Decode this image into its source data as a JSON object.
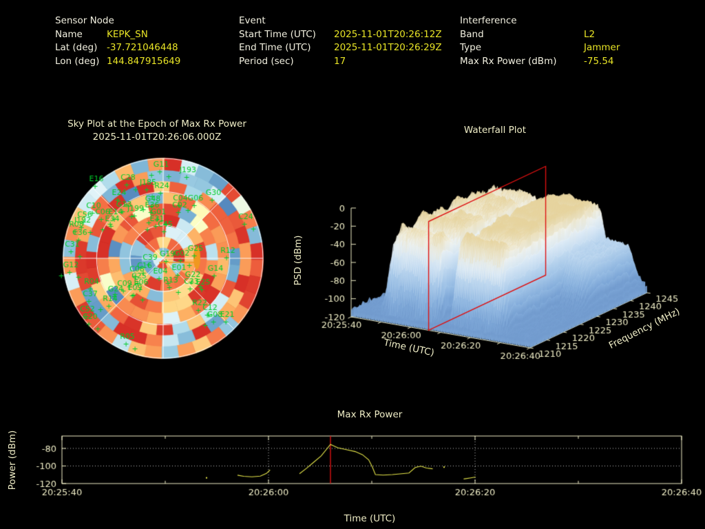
{
  "colors": {
    "background": "#000000",
    "label_text": "#f2f0e0",
    "value_text": "#e8e426",
    "chart_text": "#efedc6",
    "trace_yellow": "#e6e64a",
    "event_red": "#dd1111",
    "satellite_green": "#00cc2a",
    "jammer_orange": "#f09820",
    "grid_white": "#ffffff"
  },
  "header": {
    "sensor": {
      "title": "Sensor Node",
      "rows": [
        {
          "label": "Name",
          "value": "KEPK_SN"
        },
        {
          "label": "Lat (deg)",
          "value": "-37.721046448"
        },
        {
          "label": "Lon (deg)",
          "value": "144.847915649"
        }
      ]
    },
    "event": {
      "title": "Event",
      "rows": [
        {
          "label": "Start Time (UTC)",
          "value": "2025-11-01T20:26:12Z"
        },
        {
          "label": "End Time (UTC)",
          "value": "2025-11-01T20:26:29Z"
        },
        {
          "label": "Period (sec)",
          "value": "17"
        }
      ]
    },
    "interference": {
      "title": "Interference",
      "rows": [
        {
          "label": "Band",
          "value": "L2"
        },
        {
          "label": "Type",
          "value": "Jammer"
        },
        {
          "label": "Max Rx Power (dBm)",
          "value": "-75.54"
        }
      ]
    }
  },
  "chart_data": [
    {
      "type": "heatmap",
      "variant": "polar-sky-plot",
      "title": "Sky Plot at the Epoch of Max Rx Power",
      "subtitle": "2025-11-01T20:26:06.000Z",
      "palette": "RdYlBu-reversed, warm=high power, scattered cool cells",
      "rings": 9,
      "elevation_circles": 3,
      "radial_lines_deg": [
        0,
        45,
        90,
        135
      ],
      "jammer_marker": {
        "dx": 49,
        "dy": -1,
        "line_dx": 46,
        "shape": "ellipse"
      },
      "satellites": [
        [
          "G11",
          -3,
          -133
        ],
        [
          "J193",
          36,
          -125
        ],
        [
          "E16",
          -97,
          -112
        ],
        [
          "C28",
          -51,
          -114
        ],
        [
          "J185",
          -22,
          -107
        ],
        [
          "R24",
          -2,
          -102
        ],
        [
          "E24",
          -64,
          -92
        ],
        [
          "G30",
          73,
          -92
        ],
        [
          "G06",
          47,
          -84
        ],
        [
          "C04",
          25,
          -84
        ],
        [
          "G48",
          -15,
          -83
        ],
        [
          "E36",
          -16,
          -74
        ],
        [
          "G13",
          -57,
          -75
        ],
        [
          "J199",
          -40,
          -69
        ],
        [
          "C02",
          24,
          -74
        ],
        [
          "G01",
          -7,
          -64
        ],
        [
          "C10",
          -101,
          -73
        ],
        [
          "C56",
          -114,
          -60
        ],
        [
          "C06",
          -88,
          -64
        ],
        [
          "E14",
          -69,
          -64
        ],
        [
          "E34",
          -74,
          -54
        ],
        [
          "J192",
          -117,
          -52
        ],
        [
          "R08",
          -126,
          -46
        ],
        [
          "C36",
          -121,
          -34
        ],
        [
          "C31",
          -132,
          -17
        ],
        [
          "E31",
          -9,
          -54
        ],
        [
          "C45",
          3,
          -46
        ],
        [
          "C24",
          120,
          -57
        ],
        [
          "G25",
          47,
          -11
        ],
        [
          "R12",
          94,
          -8
        ],
        [
          "G12",
          -134,
          13
        ],
        [
          "C39",
          -19,
          2
        ],
        [
          "G19",
          6,
          -3
        ],
        [
          "G02",
          27,
          -4
        ],
        [
          "G14",
          76,
          18
        ],
        [
          "C16",
          -27,
          14
        ],
        [
          "E04",
          -4,
          22
        ],
        [
          "E01",
          23,
          17
        ],
        [
          "C08",
          -38,
          19
        ],
        [
          "G22",
          43,
          27
        ],
        [
          "C25",
          -35,
          29
        ],
        [
          "R04",
          -104,
          37
        ],
        [
          "R13",
          11,
          35
        ],
        [
          "C23",
          41,
          37
        ],
        [
          "E25",
          58,
          38
        ],
        [
          "C09",
          -56,
          40
        ],
        [
          "E06",
          -32,
          38
        ],
        [
          "G24",
          -69,
          48
        ],
        [
          "E09",
          -41,
          46
        ],
        [
          "C37",
          -106,
          55
        ],
        [
          "R14",
          -77,
          62
        ],
        [
          "R22",
          53,
          68
        ],
        [
          "C12",
          68,
          75
        ],
        [
          "C52",
          -110,
          77
        ],
        [
          "C20",
          -106,
          88
        ],
        [
          "G08",
          75,
          85
        ],
        [
          "E21",
          93,
          85
        ],
        [
          "R05",
          -52,
          117
        ]
      ]
    },
    {
      "type": "area",
      "variant": "3d-surface-waterfall",
      "title": "Waterfall Plot",
      "xlabel": "Time (UTC)",
      "ylabel": "Frequency (MHz)",
      "zlabel": "PSD (dBm)",
      "x_ticks": [
        "20:25:40",
        "20:26:00",
        "20:26:20",
        "20:26:40"
      ],
      "x_tick_offsets_sec": [
        0,
        20,
        40,
        60
      ],
      "x_minor_offsets_sec": [
        10,
        30,
        50
      ],
      "y_ticks": [
        1210,
        1215,
        1220,
        1225,
        1230,
        1235,
        1240,
        1245
      ],
      "y_range_mhz": [
        1210,
        1245
      ],
      "z_ticks": [
        0,
        -20,
        -40,
        -60,
        -80,
        -100,
        -120
      ],
      "zlim": [
        -120,
        0
      ],
      "event_marker": {
        "type": "red-plane",
        "time_utc": "20:26:06",
        "t_offset_sec": 26
      },
      "surface_summary": "Two broadband interference masses (~20:25:48-20:26:08 and 20:26:10-20:26:30) reaching about -20 dBm across 1210-1245 MHz, valley between, low ridges near 1230-1245 MHz after 20:26:25"
    },
    {
      "type": "line",
      "title": "Max Rx Power",
      "xlabel": "Time (UTC)",
      "ylabel": "Power (dBm)",
      "x_ticks": [
        "20:25:40",
        "20:26:00",
        "20:26:20",
        "20:26:40"
      ],
      "x_tick_offsets_sec": [
        0,
        20,
        40,
        60
      ],
      "x_minor_offsets_sec": [
        10,
        30,
        50
      ],
      "x_range_sec": 60,
      "y_ticks": [
        -80,
        -100,
        -120
      ],
      "ylim": [
        -120,
        -66
      ],
      "grid_y": [
        -80,
        -100
      ],
      "grid_x_offsets_sec": [
        20,
        40
      ],
      "event_marker_t_offset_sec": 26,
      "peak": {
        "t_offset_sec": 26,
        "value_dbm": -75.54
      },
      "series": [
        {
          "name": "max_rx_power_dbm",
          "segments": [
            [
              [
                14,
                -113.5
              ]
            ],
            [
              [
                17,
                -110.5
              ],
              [
                17.6,
                -111.8
              ],
              [
                18.4,
                -112.3
              ],
              [
                19.2,
                -111.6
              ],
              [
                19.8,
                -108.5
              ],
              [
                20.15,
                -104.5
              ]
            ],
            [
              [
                23,
                -108.8
              ],
              [
                23.7,
                -102.5
              ],
              [
                24.4,
                -95.5
              ],
              [
                25.1,
                -88.5
              ],
              [
                26,
                -75.5
              ],
              [
                26.7,
                -79.2
              ],
              [
                27.6,
                -81.5
              ],
              [
                28.4,
                -83.6
              ],
              [
                29.1,
                -87.2
              ],
              [
                29.7,
                -93
              ],
              [
                30.05,
                -101
              ],
              [
                30.35,
                -109.8
              ],
              [
                31.1,
                -110.4
              ],
              [
                32,
                -109.8
              ],
              [
                32.9,
                -108.8
              ],
              [
                33.6,
                -108
              ],
              [
                34.2,
                -101.8
              ],
              [
                34.75,
                -100.2
              ],
              [
                35.3,
                -102.4
              ],
              [
                35.9,
                -103.2
              ]
            ],
            [
              [
                37,
                -101.3
              ]
            ],
            [
              [
                38.9,
                -114.8
              ],
              [
                39.6,
                -113.5
              ],
              [
                40.05,
                -112.6
              ]
            ]
          ]
        }
      ]
    }
  ]
}
